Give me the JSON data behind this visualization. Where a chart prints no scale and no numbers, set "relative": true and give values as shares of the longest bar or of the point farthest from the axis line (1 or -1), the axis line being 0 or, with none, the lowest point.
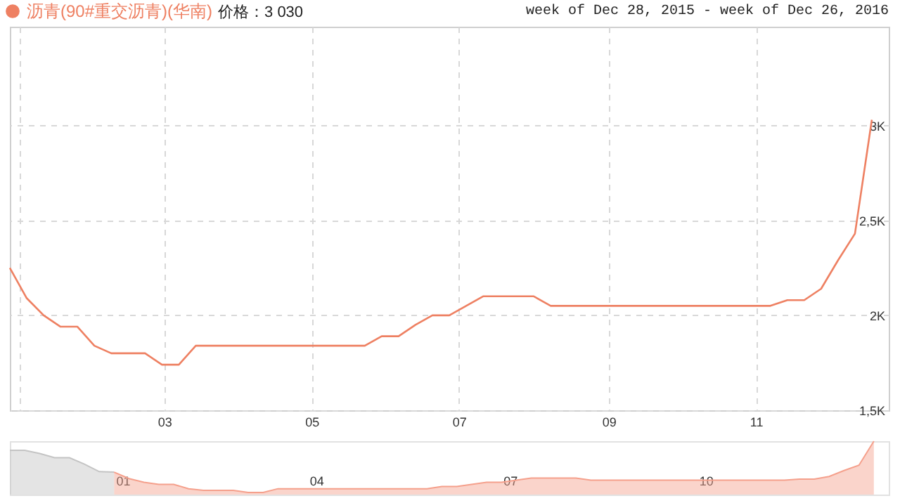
{
  "chart_data": [
    {
      "type": "line",
      "subtitle": "week of Dec 28, 2015 - week of Dec 26, 2016",
      "annotations": [
        "价格：3 030"
      ],
      "x": [
        "2015-12-28",
        "2016-01-04",
        "2016-01-11",
        "2016-01-18",
        "2016-01-25",
        "2016-02-01",
        "2016-02-08",
        "2016-02-15",
        "2016-02-22",
        "2016-02-29",
        "2016-03-07",
        "2016-03-14",
        "2016-03-21",
        "2016-03-28",
        "2016-04-04",
        "2016-04-11",
        "2016-04-18",
        "2016-04-25",
        "2016-05-02",
        "2016-05-09",
        "2016-05-16",
        "2016-05-23",
        "2016-05-30",
        "2016-06-06",
        "2016-06-13",
        "2016-06-20",
        "2016-06-27",
        "2016-07-04",
        "2016-07-11",
        "2016-07-18",
        "2016-07-25",
        "2016-08-01",
        "2016-08-08",
        "2016-08-15",
        "2016-08-22",
        "2016-08-29",
        "2016-09-05",
        "2016-09-12",
        "2016-09-19",
        "2016-09-26",
        "2016-10-03",
        "2016-10-10",
        "2016-10-17",
        "2016-10-24",
        "2016-10-31",
        "2016-11-07",
        "2016-11-14",
        "2016-11-21",
        "2016-11-28",
        "2016-12-05",
        "2016-12-12",
        "2016-12-19"
      ],
      "series": [
        {
          "name": "沥青(90#重交沥青)(华南)",
          "color": "#ee8062",
          "values": [
            2250,
            2090,
            2000,
            1940,
            1940,
            1840,
            1800,
            1800,
            1800,
            1740,
            1740,
            1840,
            1840,
            1840,
            1840,
            1840,
            1840,
            1840,
            1840,
            1840,
            1840,
            1840,
            1890,
            1890,
            1950,
            2000,
            2000,
            2050,
            2100,
            2100,
            2100,
            2100,
            2050,
            2050,
            2050,
            2050,
            2050,
            2050,
            2050,
            2050,
            2050,
            2050,
            2050,
            2050,
            2050,
            2050,
            2080,
            2080,
            2140,
            2290,
            2430,
            3030
          ]
        }
      ],
      "xlim": [
        "2015-12-28",
        "2016-12-26"
      ],
      "xticks": [
        {
          "value": "2016-01-01",
          "label": null
        },
        {
          "value": "2016-03-01",
          "label": "03"
        },
        {
          "value": "2016-05-01",
          "label": "05"
        },
        {
          "value": "2016-07-01",
          "label": "07"
        },
        {
          "value": "2016-09-01",
          "label": "09"
        },
        {
          "value": "2016-11-01",
          "label": "11"
        }
      ],
      "ylim": [
        1500,
        3520
      ],
      "yticks": [
        {
          "value": 1500,
          "label": "1,5K"
        },
        {
          "value": 2000,
          "label": "2K"
        },
        {
          "value": 2500,
          "label": "2,5K"
        },
        {
          "value": 3000,
          "label": "3K"
        }
      ],
      "grid": true,
      "legend": "top left"
    },
    {
      "type": "area",
      "relative": true,
      "tick_labels": "x",
      "series": [
        {
          "color": "#c4c4c4",
          "x": [
            "2015-11-09",
            "2015-11-16",
            "2015-11-23",
            "2015-11-30",
            "2015-12-07",
            "2015-12-14",
            "2015-12-21",
            "2015-12-28"
          ],
          "values": [
            0.83,
            0.83,
            0.77,
            0.69,
            0.69,
            0.57,
            0.43,
            0.42
          ]
        },
        {
          "color": "#f5a08c",
          "x": [
            "2015-12-28",
            "2016-01-04",
            "2016-01-11",
            "2016-01-18",
            "2016-01-25",
            "2016-02-01",
            "2016-02-08",
            "2016-02-15",
            "2016-02-22",
            "2016-02-29",
            "2016-03-07",
            "2016-03-14",
            "2016-03-21",
            "2016-03-28",
            "2016-04-04",
            "2016-04-11",
            "2016-04-18",
            "2016-04-25",
            "2016-05-02",
            "2016-05-09",
            "2016-05-16",
            "2016-05-23",
            "2016-05-30",
            "2016-06-06",
            "2016-06-13",
            "2016-06-20",
            "2016-06-27",
            "2016-07-04",
            "2016-07-11",
            "2016-07-18",
            "2016-07-25",
            "2016-08-01",
            "2016-08-08",
            "2016-08-15",
            "2016-08-22",
            "2016-08-29",
            "2016-09-05",
            "2016-09-12",
            "2016-09-19",
            "2016-09-26",
            "2016-10-03",
            "2016-10-10",
            "2016-10-17",
            "2016-10-24",
            "2016-10-31",
            "2016-11-07",
            "2016-11-14",
            "2016-11-21",
            "2016-11-28",
            "2016-12-05",
            "2016-12-12",
            "2016-12-19"
          ],
          "values": [
            0.42,
            0.3,
            0.23,
            0.19,
            0.19,
            0.11,
            0.08,
            0.08,
            0.08,
            0.04,
            0.04,
            0.11,
            0.11,
            0.11,
            0.11,
            0.11,
            0.11,
            0.11,
            0.11,
            0.11,
            0.11,
            0.11,
            0.15,
            0.15,
            0.19,
            0.23,
            0.23,
            0.27,
            0.31,
            0.31,
            0.31,
            0.31,
            0.27,
            0.27,
            0.27,
            0.27,
            0.27,
            0.27,
            0.27,
            0.27,
            0.27,
            0.27,
            0.27,
            0.27,
            0.27,
            0.27,
            0.29,
            0.29,
            0.34,
            0.45,
            0.55,
            1
          ]
        }
      ],
      "xlim": [
        "2015-11-09",
        "2016-12-26"
      ],
      "xticks": [
        {
          "value": "2016-01-01",
          "label": "01"
        },
        {
          "value": "2016-04-01",
          "label": "04"
        },
        {
          "value": "2016-07-01",
          "label": "07"
        },
        {
          "value": "2016-10-01",
          "label": "10"
        }
      ]
    }
  ]
}
